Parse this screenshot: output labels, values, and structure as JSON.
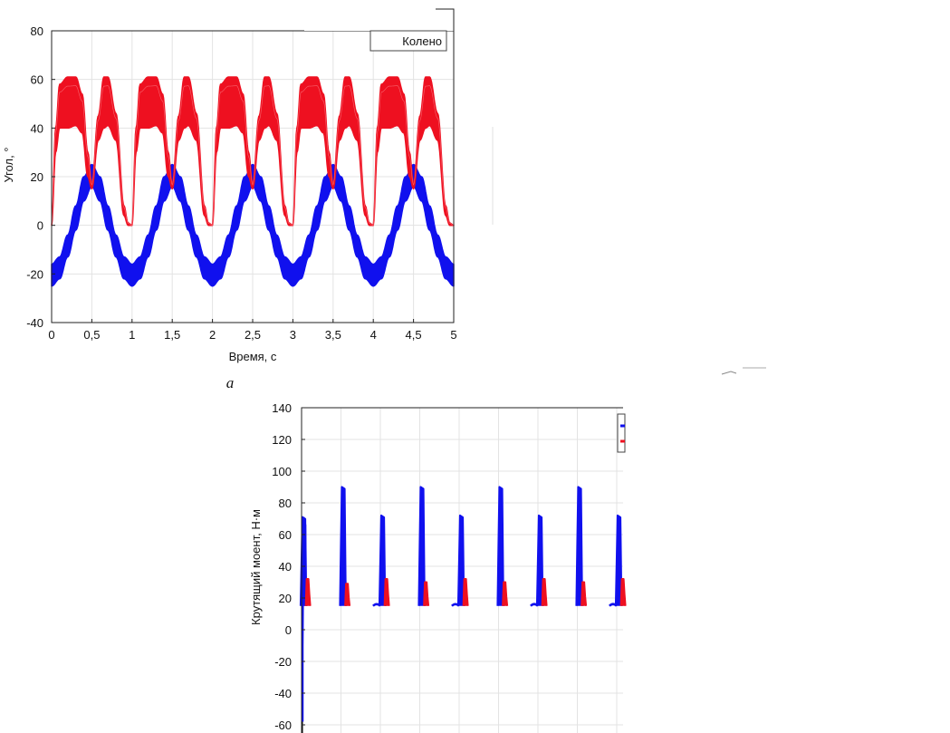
{
  "colors": {
    "blue": "#1010ee",
    "red": "#ee1020",
    "grid": "#e3e3e3",
    "axis": "#222222"
  },
  "chart_data": [
    {
      "type": "line",
      "panel_label": "а",
      "xlabel": "Время, с",
      "ylabel": "Угол, °",
      "xlim": [
        0,
        5
      ],
      "ylim": [
        -40,
        80
      ],
      "x_ticks": [
        "0",
        "0,5",
        "1",
        "1,5",
        "2",
        "2,5",
        "3",
        "3,5",
        "4",
        "4,5",
        "5"
      ],
      "y_ticks": [
        "-40",
        "-20",
        "0",
        "20",
        "40",
        "60",
        "80"
      ],
      "grid": true,
      "legend_position": "top-right",
      "legend_visible_text": "Колено",
      "period": 1.0,
      "series": [
        {
          "name": "Колено",
          "color": "red",
          "x": [
            0.0,
            0.05,
            0.1,
            0.2,
            0.3,
            0.38,
            0.45,
            0.5,
            0.58,
            0.65,
            0.7,
            0.8,
            0.9,
            0.95,
            1.0
          ],
          "y_upper": [
            0,
            40,
            58,
            61,
            61,
            54,
            30,
            17,
            45,
            61,
            61,
            46,
            8,
            1,
            0
          ],
          "y_lower": [
            0,
            30,
            40,
            40,
            41,
            38,
            20,
            15,
            35,
            40,
            41,
            35,
            4,
            0,
            0
          ]
        },
        {
          "name": "",
          "color": "blue",
          "x": [
            0.0,
            0.1,
            0.2,
            0.3,
            0.4,
            0.5,
            0.6,
            0.7,
            0.8,
            0.9,
            1.0
          ],
          "y_upper": [
            -16,
            -13,
            -4,
            8,
            20,
            25,
            20,
            8,
            -4,
            -13,
            -16
          ],
          "y_lower": [
            -25,
            -22,
            -13,
            -2,
            10,
            16,
            10,
            -2,
            -13,
            -22,
            -25
          ]
        }
      ]
    },
    {
      "type": "line",
      "panel_label": "",
      "xlabel": "",
      "ylabel": "Крутящий моент, Н·м",
      "xlim": [
        0,
        5
      ],
      "ylim": [
        -60,
        140
      ],
      "x_ticks": [],
      "y_ticks": [
        "-60",
        "-40",
        "-20",
        "0",
        "20",
        "40",
        "60",
        "80",
        "100",
        "120",
        "140"
      ],
      "grid": true,
      "legend_position": "top-right",
      "baseline": 15,
      "series": [
        {
          "name": "",
          "color": "blue",
          "spike_times": [
            0.0,
            0.5,
            1.0,
            1.5,
            2.0,
            2.5,
            3.0,
            3.5,
            4.0
          ],
          "spike_peaks": [
            71,
            90,
            72,
            90,
            72,
            90,
            72,
            90,
            72
          ],
          "minor_bumps": [
            0.93,
            1.93,
            2.93,
            3.93
          ]
        },
        {
          "name": "",
          "color": "red",
          "spike_times": [
            0.03,
            0.53,
            1.03,
            1.53,
            2.03,
            2.53,
            3.03,
            3.53,
            4.03
          ],
          "spike_peaks": [
            32,
            29,
            32,
            30,
            32,
            30,
            32,
            30,
            32
          ]
        }
      ],
      "start_transient": {
        "min": -58,
        "peak_blue": 71,
        "dip": -10
      }
    }
  ]
}
